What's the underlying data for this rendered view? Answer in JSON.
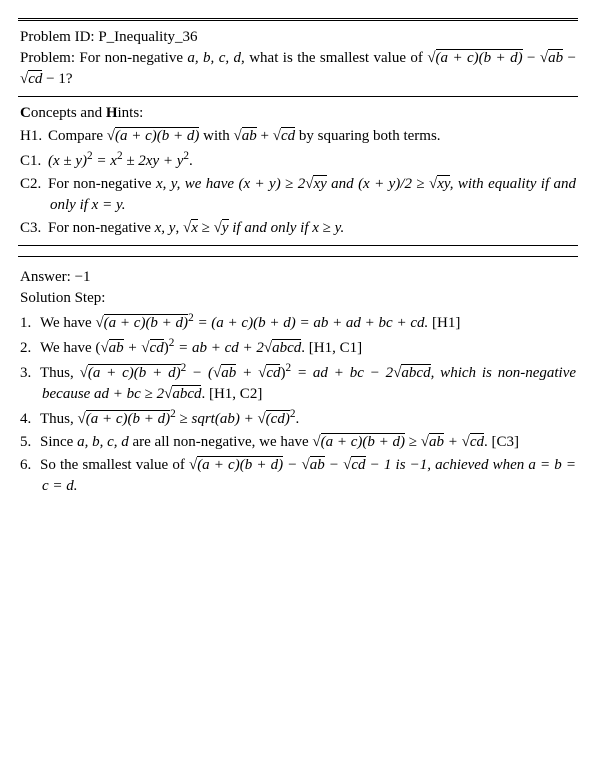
{
  "problem_id_label": "Problem ID:",
  "problem_id": "P_Inequality_36",
  "problem_label": "Problem:",
  "problem_text_a": "For non-negative ",
  "problem_vars": "a, b, c, d",
  "problem_text_b": ", what is the smallest value of ",
  "problem_expr_tail": "− 1?",
  "concepts_heading": "Concepts and Hints:",
  "hints": {
    "h1": {
      "tag": "H1.",
      "pre": "Compare ",
      "mid": " with ",
      "post": " by squaring both terms."
    },
    "c1": {
      "tag": "C1.",
      "text": "(x ± y)",
      "sq": "2",
      "eq": " = x",
      "sq2": "2",
      "pm": " ± 2xy + y",
      "sq3": "2",
      "dot": "."
    },
    "c2": {
      "tag": "C2.",
      "pre": "For non-negative ",
      "vars": "x, y",
      "mid1": ", we have (x + y) ≥ 2",
      "mid2": " and (x + y)/2 ≥ ",
      "post": ", with equality if and only if x = y."
    },
    "c3": {
      "tag": "C3.",
      "pre": "For non-negative ",
      "vars": "x, y",
      "mid1": ", ",
      "mid2": " ≥ ",
      "mid3": " if and only if x ≥ y."
    }
  },
  "answer_label": "Answer:",
  "answer_value": "−1",
  "solution_heading": "Solution Step:",
  "steps": {
    "s1": {
      "tag": "1.",
      "pre": "We have ",
      "eq1": " = (a + c)(b + d) = ab + ad + bc + cd. ",
      "ref": "[H1]"
    },
    "s2": {
      "tag": "2.",
      "pre": "We have (",
      "plus": " + ",
      "close": ")",
      "eq": " = ab + cd + 2",
      "dot": ". ",
      "ref": "[H1, C1]"
    },
    "s3": {
      "tag": "3.",
      "pre": "Thus, ",
      "minus": " − (",
      "plus": " + ",
      "close": ")",
      "eq": " = ad + bc − 2",
      "mid": ", which is non-negative because ad + bc ≥ 2",
      "dot": ". ",
      "ref": "[H1, C2]"
    },
    "s4": {
      "tag": "4.",
      "pre": "Thus, ",
      "geq": " ≥ sqrt(ab) + ",
      "dot": "."
    },
    "s5": {
      "tag": "5.",
      "pre": "Since ",
      "vars": "a, b, c, d",
      "mid": " are all non-negative, we have ",
      "geq": " ≥ ",
      "plus": " + ",
      "dot": ". ",
      "ref": "[C3]"
    },
    "s6": {
      "tag": "6.",
      "pre": "So the smallest value of ",
      "minus1": " − ",
      "minus2": " − ",
      "tail": " − 1 is −1, achieved when a = b = c = d."
    }
  },
  "radicands": {
    "acbd": "(a + c)(b + d)",
    "ab": "ab",
    "cd": "cd",
    "xy": "xy",
    "x": "x",
    "y": "y",
    "abcd": "abcd",
    "cd_paren": "(cd)"
  },
  "exp2": "2"
}
